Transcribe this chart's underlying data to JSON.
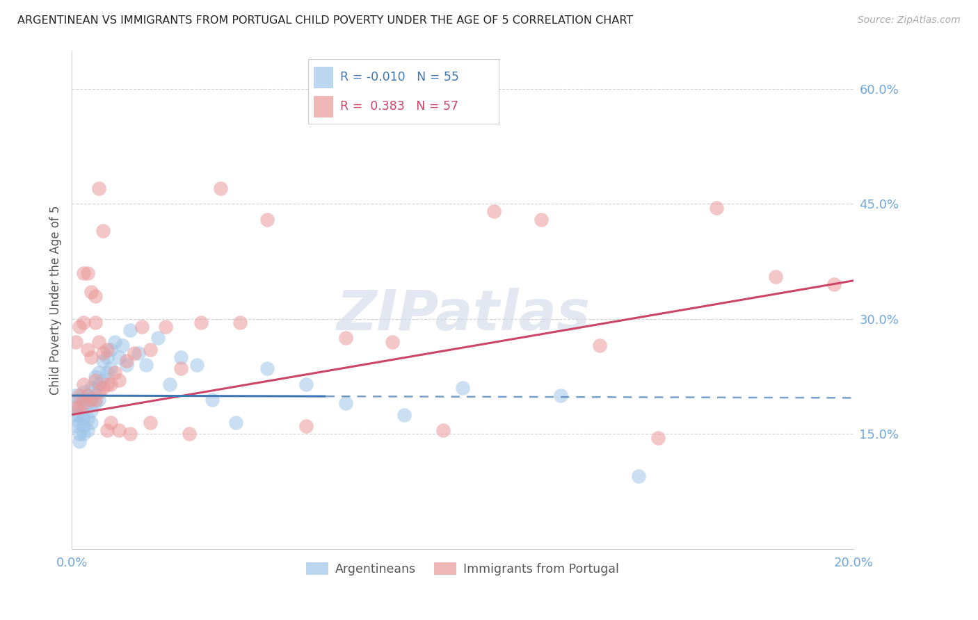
{
  "title": "ARGENTINEAN VS IMMIGRANTS FROM PORTUGAL CHILD POVERTY UNDER THE AGE OF 5 CORRELATION CHART",
  "source": "Source: ZipAtlas.com",
  "ylabel": "Child Poverty Under the Age of 5",
  "right_yticks": [
    "60.0%",
    "45.0%",
    "30.0%",
    "15.0%"
  ],
  "right_ytick_vals": [
    0.6,
    0.45,
    0.3,
    0.15
  ],
  "legend_blue_r": "-0.010",
  "legend_blue_n": "55",
  "legend_pink_r": "0.383",
  "legend_pink_n": "57",
  "blue_color": "#9fc5e8",
  "pink_color": "#ea9999",
  "blue_line_color": "#3d78b5",
  "pink_line_color": "#cc4466",
  "axis_color": "#6fa8dc",
  "background_color": "#ffffff",
  "grid_color": "#cccccc",
  "title_color": "#222222",
  "watermark": "ZIPatlas",
  "xlim": [
    0.0,
    0.2
  ],
  "ylim": [
    0.0,
    0.65
  ],
  "figsize": [
    14.06,
    8.92
  ],
  "dpi": 100,
  "blue_scatter_x": [
    0.001,
    0.001,
    0.001,
    0.001,
    0.002,
    0.002,
    0.002,
    0.002,
    0.002,
    0.003,
    0.003,
    0.003,
    0.003,
    0.003,
    0.003,
    0.004,
    0.004,
    0.004,
    0.004,
    0.005,
    0.005,
    0.005,
    0.005,
    0.006,
    0.006,
    0.006,
    0.007,
    0.007,
    0.007,
    0.008,
    0.008,
    0.009,
    0.009,
    0.01,
    0.01,
    0.011,
    0.012,
    0.013,
    0.014,
    0.015,
    0.017,
    0.019,
    0.022,
    0.025,
    0.028,
    0.032,
    0.036,
    0.042,
    0.05,
    0.06,
    0.07,
    0.085,
    0.1,
    0.125,
    0.145
  ],
  "blue_scatter_y": [
    0.2,
    0.185,
    0.175,
    0.16,
    0.195,
    0.175,
    0.165,
    0.15,
    0.14,
    0.205,
    0.195,
    0.185,
    0.17,
    0.16,
    0.15,
    0.2,
    0.19,
    0.17,
    0.155,
    0.21,
    0.195,
    0.18,
    0.165,
    0.225,
    0.21,
    0.19,
    0.23,
    0.215,
    0.195,
    0.245,
    0.22,
    0.25,
    0.23,
    0.26,
    0.235,
    0.27,
    0.25,
    0.265,
    0.24,
    0.285,
    0.255,
    0.24,
    0.275,
    0.215,
    0.25,
    0.24,
    0.195,
    0.165,
    0.235,
    0.215,
    0.19,
    0.175,
    0.21,
    0.2,
    0.095
  ],
  "pink_scatter_x": [
    0.001,
    0.001,
    0.002,
    0.002,
    0.002,
    0.003,
    0.003,
    0.003,
    0.004,
    0.004,
    0.005,
    0.005,
    0.006,
    0.006,
    0.006,
    0.007,
    0.007,
    0.008,
    0.008,
    0.009,
    0.009,
    0.01,
    0.011,
    0.012,
    0.014,
    0.016,
    0.018,
    0.02,
    0.024,
    0.028,
    0.033,
    0.038,
    0.043,
    0.05,
    0.06,
    0.07,
    0.082,
    0.095,
    0.108,
    0.12,
    0.135,
    0.15,
    0.165,
    0.18,
    0.195,
    0.003,
    0.004,
    0.005,
    0.006,
    0.007,
    0.008,
    0.009,
    0.01,
    0.012,
    0.015,
    0.02,
    0.03
  ],
  "pink_scatter_y": [
    0.185,
    0.27,
    0.185,
    0.2,
    0.29,
    0.19,
    0.215,
    0.295,
    0.2,
    0.26,
    0.195,
    0.25,
    0.195,
    0.22,
    0.295,
    0.205,
    0.27,
    0.21,
    0.255,
    0.215,
    0.26,
    0.215,
    0.23,
    0.22,
    0.245,
    0.255,
    0.29,
    0.26,
    0.29,
    0.235,
    0.295,
    0.47,
    0.295,
    0.43,
    0.16,
    0.275,
    0.27,
    0.155,
    0.44,
    0.43,
    0.265,
    0.145,
    0.445,
    0.355,
    0.345,
    0.36,
    0.36,
    0.335,
    0.33,
    0.47,
    0.415,
    0.155,
    0.165,
    0.155,
    0.15,
    0.165,
    0.15
  ],
  "blue_line_y_at_0": 0.2,
  "blue_line_y_at_020": 0.197,
  "blue_line_solid_end": 0.065,
  "pink_line_y_at_0": 0.175,
  "pink_line_y_at_020": 0.35
}
